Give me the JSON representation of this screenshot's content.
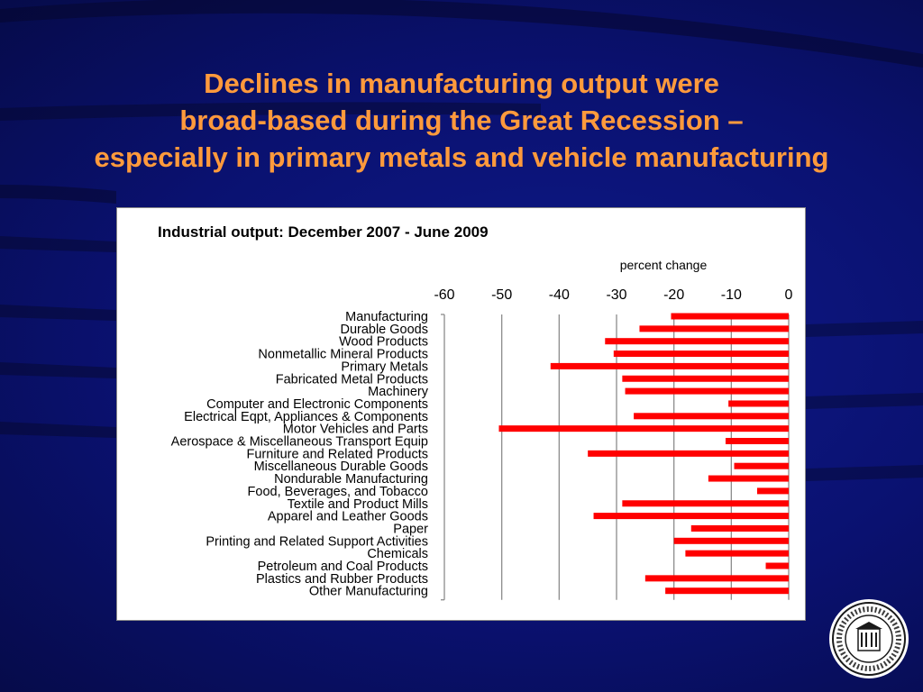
{
  "slide": {
    "title_lines": [
      "Declines in manufacturing output were",
      "broad-based during the Great Recession –",
      "especially in primary metals and vehicle manufacturing"
    ]
  },
  "colors": {
    "title": "#ff9a3c",
    "bar": "#ff0000",
    "background": "#0a1170"
  },
  "logo": {
    "name": "seal-icon",
    "text": "FEDERAL RESERVE BANK OF CHICAGO INCORPORATED MAY 18, 1914"
  },
  "chart_data": {
    "type": "bar",
    "orientation": "horizontal",
    "title": "Industrial output: December 2007  - June 2009",
    "xlabel": "percent change",
    "xlim": [
      -60,
      0
    ],
    "xticks": [
      "-60",
      "-50",
      "-40",
      "-30",
      "-20",
      "-10",
      "0"
    ],
    "xtick_values": [
      -60,
      -50,
      -40,
      -30,
      -20,
      -10,
      0
    ],
    "grid": "vertical",
    "categories": [
      "Manufacturing",
      "Durable Goods",
      "Wood Products",
      "Nonmetallic Mineral Products",
      "Primary Metals",
      "Fabricated Metal Products",
      "Machinery",
      "Computer and Electronic Components",
      "Electrical Eqpt, Appliances & Components",
      "Motor Vehicles and Parts",
      "Aerospace & Miscellaneous Transport Equip",
      "Furniture and Related Products",
      "Miscellaneous Durable Goods",
      "Nondurable Manufacturing",
      "Food, Beverages, and Tobacco",
      "Textile and Product  Mills",
      "Apparel and Leather Goods",
      "Paper",
      "Printing and Related Support  Activities",
      "Chemicals",
      "Petroleum and Coal Products",
      "Plastics and Rubber Products",
      "Other Manufacturing"
    ],
    "values": [
      -20.5,
      -26,
      -32,
      -30.5,
      -41.5,
      -29,
      -28.5,
      -10.5,
      -27,
      -50.5,
      -11,
      -35,
      -9.5,
      -14,
      -5.5,
      -29,
      -34,
      -17,
      -20,
      -18,
      -4,
      -25,
      -21.5
    ]
  }
}
